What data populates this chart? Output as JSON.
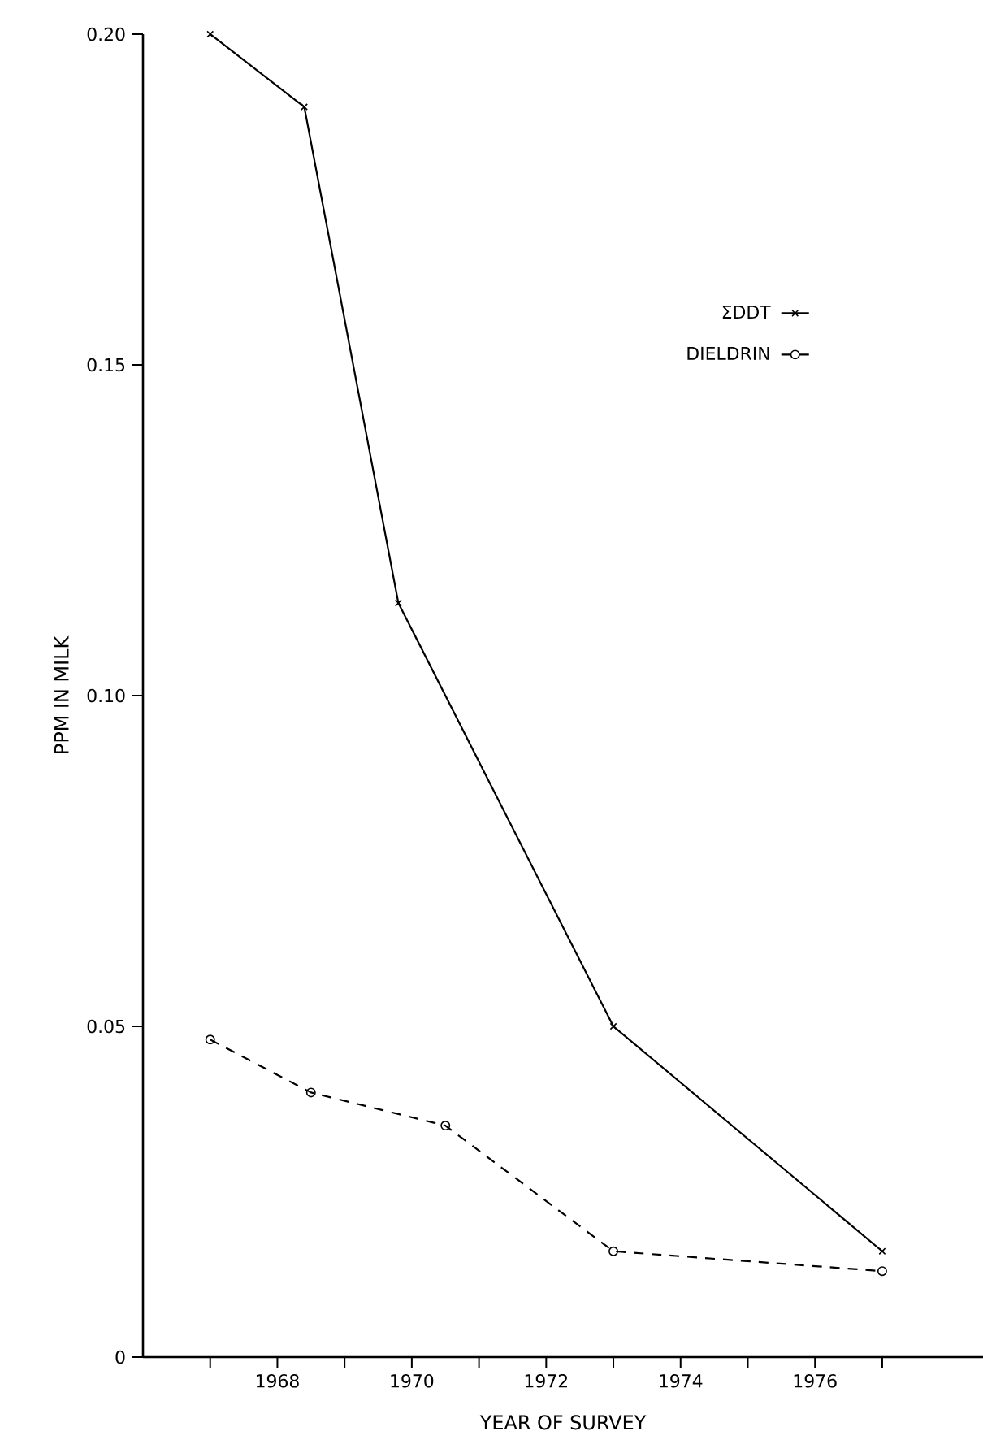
{
  "chart_data": {
    "type": "line",
    "xlabel": "YEAR OF SURVEY",
    "ylabel": "PPM IN MILK",
    "xlim": [
      1966,
      1978.5
    ],
    "ylim": [
      0,
      0.2
    ],
    "xticks": [
      {
        "value": 1967,
        "label": null
      },
      1968,
      {
        "value": 1969,
        "label": null
      },
      1970,
      {
        "value": 1971,
        "label": null
      },
      1972,
      {
        "value": 1973,
        "label": null
      },
      1974,
      {
        "value": 1975,
        "label": null
      },
      1976,
      {
        "value": 1977,
        "label": null
      }
    ],
    "yticks": [
      0,
      0.05,
      {
        "value": 0.1,
        "label": "0.10"
      },
      0.15,
      {
        "value": 0.2,
        "label": "0.20"
      }
    ],
    "grid": false,
    "legend": "top right",
    "series": [
      {
        "name": "ΣDDT",
        "color": "#000000",
        "marker": "cross",
        "line_style": "solid",
        "x": [
          1967,
          1968.4,
          1969.8,
          1973,
          1977
        ],
        "values": [
          0.2,
          0.189,
          0.114,
          0.05,
          0.016
        ]
      },
      {
        "name": "DIELDRIN",
        "color": "#000000",
        "marker": "circle",
        "line_style": "dashed",
        "x": [
          1967,
          1968.5,
          1970.5,
          1973,
          1977
        ],
        "values": [
          0.048,
          0.04,
          0.035,
          0.016,
          0.013
        ]
      }
    ]
  }
}
